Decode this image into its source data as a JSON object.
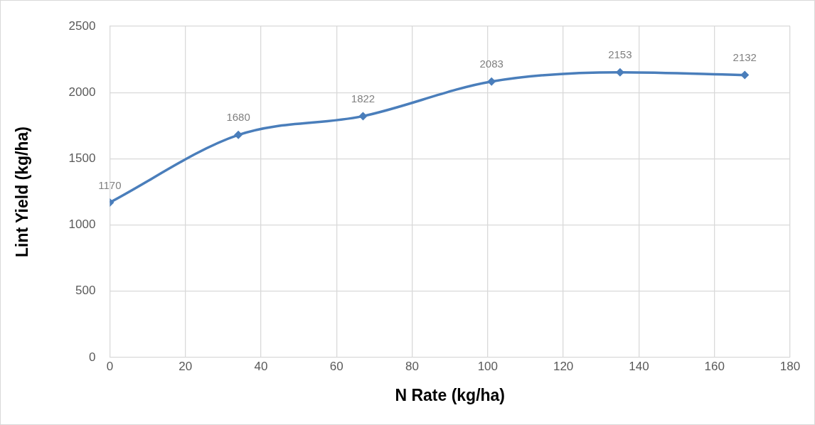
{
  "chart_data": {
    "type": "line",
    "xlabel": "N Rate (kg/ha)",
    "ylabel": "Lint Yield (kg/ha)",
    "x": [
      0,
      34,
      67,
      101,
      135,
      168
    ],
    "series": [
      {
        "color": "#4a7ebb",
        "values": [
          1170,
          1680,
          1822,
          2083,
          2153,
          2132
        ]
      }
    ],
    "xlim": [
      0,
      180
    ],
    "xticks": [
      0,
      20,
      40,
      60,
      80,
      100,
      120,
      140,
      160,
      180
    ],
    "ylim": [
      0,
      2500
    ],
    "yticks": [
      0,
      500,
      1000,
      1500,
      2000,
      2500
    ],
    "grid": true,
    "legend": false,
    "marker": "diamond",
    "line_style": "solid",
    "data_labels": true
  }
}
